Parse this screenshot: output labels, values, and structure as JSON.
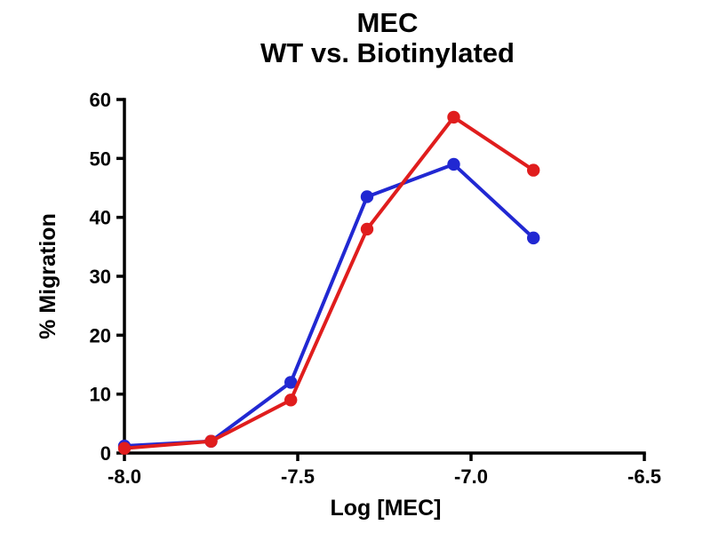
{
  "title": {
    "line1": "MEC",
    "line2": "WT vs. Biotinylated"
  },
  "chart_data": {
    "type": "line",
    "title": "MEC — WT vs. Biotinylated",
    "xlabel": "Log [MEC]",
    "ylabel": "% Migration",
    "xlim": [
      -8.0,
      -6.5
    ],
    "ylim": [
      0,
      60
    ],
    "xticks": [
      -8.0,
      -7.5,
      -7.0,
      -6.5
    ],
    "yticks": [
      0,
      10,
      20,
      30,
      40,
      50,
      60
    ],
    "grid": false,
    "legend": "none",
    "marker": "circle",
    "x": [
      -8.0,
      -7.75,
      -7.52,
      -7.3,
      -7.05,
      -6.82
    ],
    "series": [
      {
        "name": "blue-series",
        "color": "#2128d2",
        "values": [
          1.2,
          2,
          12,
          43.5,
          49,
          36.5
        ]
      },
      {
        "name": "red-series",
        "color": "#e01d1d",
        "values": [
          0.8,
          2,
          9,
          38,
          57,
          48
        ]
      }
    ],
    "axis_color": "#000000"
  }
}
